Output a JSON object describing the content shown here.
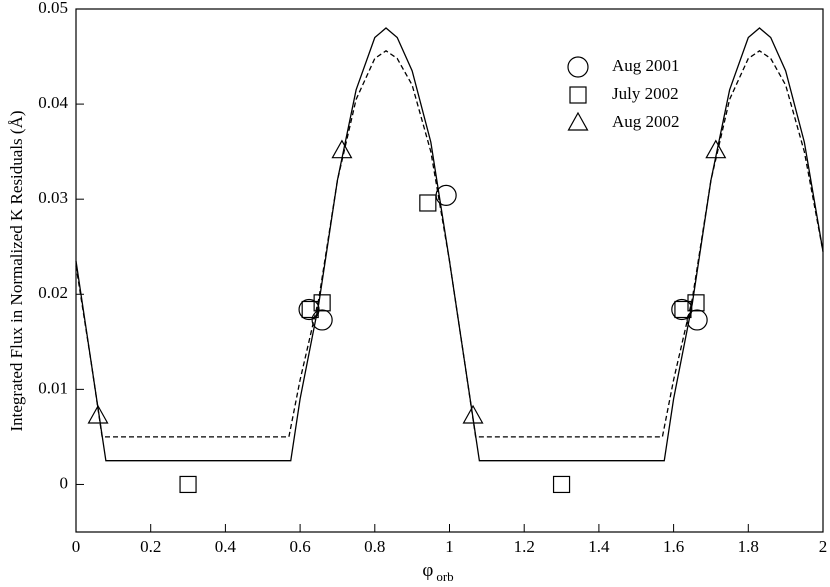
{
  "chart_data": {
    "type": "scatter",
    "xlabel": "φ",
    "xlabel_sub": "orb",
    "ylabel": "Integrated Flux in Normalized K Residuals (Å)",
    "xlim": [
      0,
      2
    ],
    "ylim": [
      -0.005,
      0.05
    ],
    "xticks": [
      0,
      0.2,
      0.4,
      0.6,
      0.8,
      1,
      1.2,
      1.4,
      1.6,
      1.8,
      2
    ],
    "yticks": [
      0,
      0.01,
      0.02,
      0.03,
      0.04,
      0.05
    ],
    "legend": "upper right",
    "series": [
      {
        "name": "Aug 2001",
        "marker": "circle",
        "color": "#000000",
        "x": [
          0.624,
          0.659,
          0.991,
          1.622,
          1.663
        ],
        "values": [
          0.0184,
          0.0173,
          0.0304,
          0.0184,
          0.0173
        ]
      },
      {
        "name": "July 2002",
        "marker": "square",
        "color": "#000000",
        "x": [
          0.3,
          0.627,
          0.659,
          0.942,
          1.3,
          1.625,
          1.66
        ],
        "values": [
          0,
          0.0184,
          0.0191,
          0.0296,
          0,
          0.0184,
          0.0191
        ]
      },
      {
        "name": "Aug 2002",
        "marker": "triangle",
        "color": "#000000",
        "x": [
          0.059,
          0.712,
          1.063,
          1.713
        ],
        "values": [
          0.0072,
          0.0351,
          0.0072,
          0.0351
        ]
      }
    ],
    "curves": [
      {
        "style": "solid",
        "color": "#000000",
        "x": [
          0,
          0.04,
          0.08,
          0.575,
          0.6,
          0.65,
          0.7,
          0.75,
          0.8,
          0.83,
          0.86,
          0.9,
          0.95,
          1,
          1.04,
          1.08,
          1.575,
          1.6,
          1.65,
          1.7,
          1.75,
          1.8,
          1.83,
          1.86,
          1.9,
          1.95,
          2
        ],
        "values": [
          0.0235,
          0.013,
          0.0025,
          0.0025,
          0.009,
          0.019,
          0.032,
          0.0415,
          0.047,
          0.048,
          0.047,
          0.0435,
          0.036,
          0.0235,
          0.013,
          0.0025,
          0.0025,
          0.009,
          0.019,
          0.032,
          0.0415,
          0.047,
          0.048,
          0.047,
          0.0435,
          0.036,
          0.0245
        ]
      },
      {
        "style": "dashed",
        "color": "#000000",
        "x": [
          0,
          0.04,
          0.07,
          0.57,
          0.6,
          0.65,
          0.7,
          0.75,
          0.8,
          0.83,
          0.86,
          0.9,
          0.95,
          1,
          1.04,
          1.07,
          1.57,
          1.6,
          1.65,
          1.7,
          1.75,
          1.8,
          1.83,
          1.86,
          1.9,
          1.95,
          2
        ],
        "values": [
          0.023,
          0.013,
          0.005,
          0.005,
          0.011,
          0.0195,
          0.032,
          0.0405,
          0.0448,
          0.0456,
          0.0448,
          0.042,
          0.035,
          0.0235,
          0.013,
          0.005,
          0.005,
          0.011,
          0.0195,
          0.032,
          0.0405,
          0.0448,
          0.0456,
          0.0448,
          0.042,
          0.035,
          0.0245
        ]
      }
    ]
  }
}
